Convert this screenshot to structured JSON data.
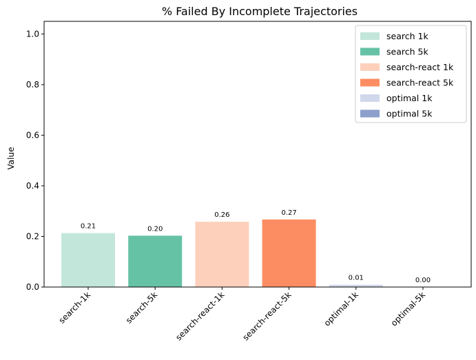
{
  "chart_data": {
    "type": "bar",
    "title": "% Failed By Incomplete Trajectories",
    "xlabel": "",
    "ylabel": "Value",
    "ylim": [
      0,
      1.05
    ],
    "yticks": [
      "0.0",
      "0.2",
      "0.4",
      "0.6",
      "0.8",
      "1.0"
    ],
    "grid": false,
    "legend_position": "top-right",
    "categories": [
      "search-1k",
      "search-5k",
      "search-react-1k",
      "search-react-5k",
      "optimal-1k",
      "optimal-5k"
    ],
    "values": [
      0.213,
      0.203,
      0.258,
      0.267,
      0.009,
      0.0
    ],
    "value_labels": [
      "0.21",
      "0.20",
      "0.26",
      "0.27",
      "0.01",
      "0.00"
    ],
    "colors": [
      "#c3e6db",
      "#66c2a5",
      "#fdd0bc",
      "#fc8d62",
      "#d1d8ec",
      "#8da0cb"
    ],
    "legend": [
      "search 1k",
      "search 5k",
      "search-react 1k",
      "search-react 5k",
      "optimal 1k",
      "optimal 5k"
    ]
  }
}
